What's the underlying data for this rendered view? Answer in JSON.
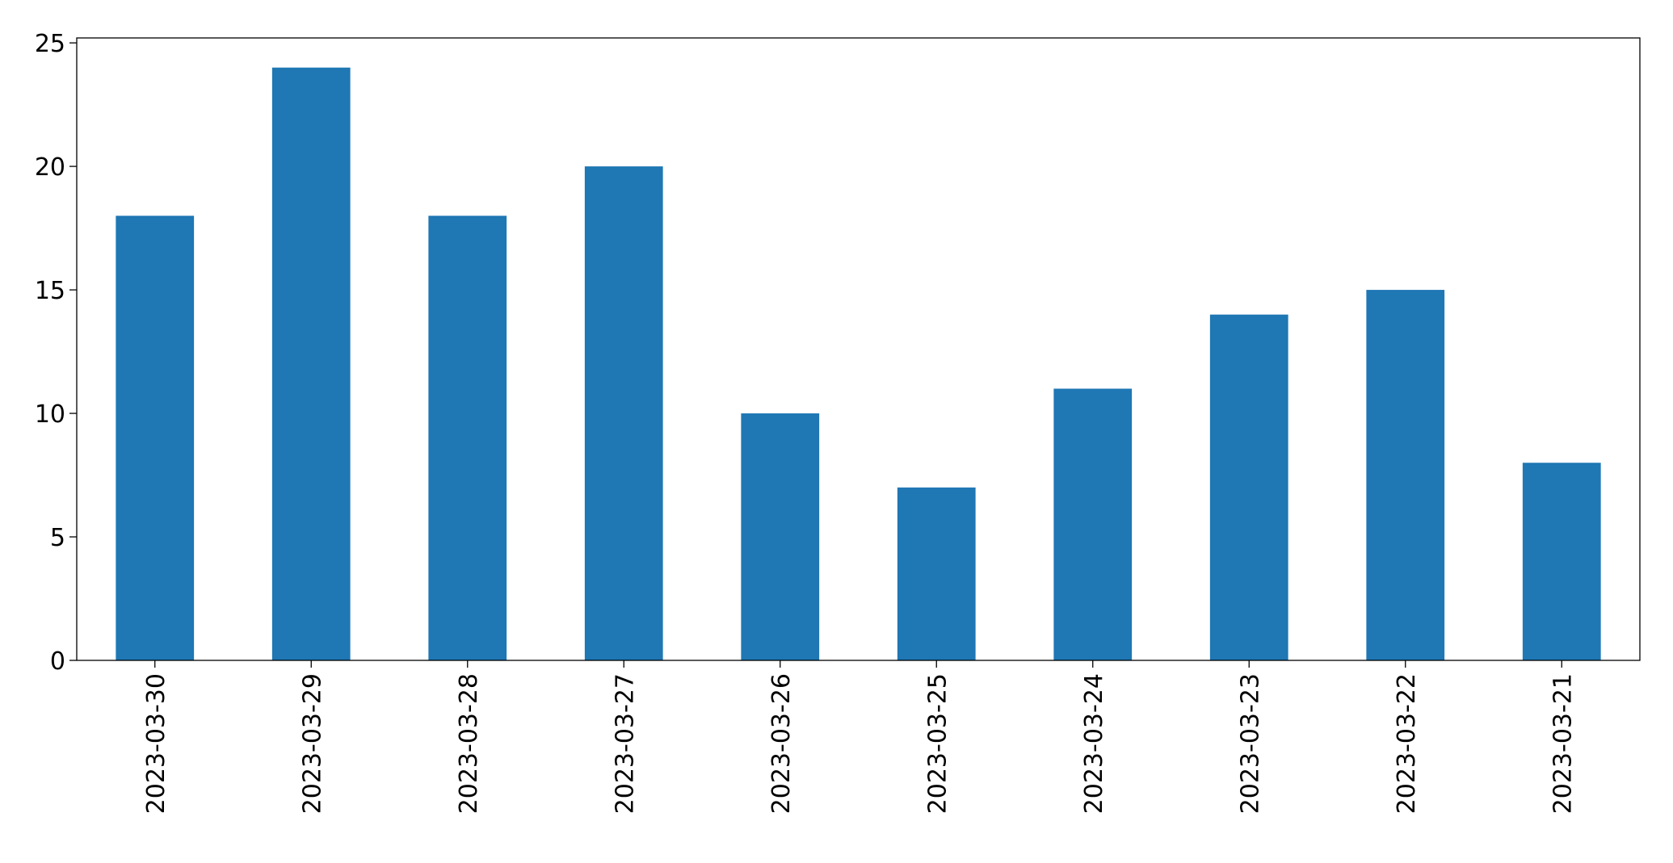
{
  "chart_data": {
    "type": "bar",
    "categories": [
      "2023-03-30",
      "2023-03-29",
      "2023-03-28",
      "2023-03-27",
      "2023-03-26",
      "2023-03-25",
      "2023-03-24",
      "2023-03-23",
      "2023-03-22",
      "2023-03-21"
    ],
    "values": [
      18,
      24,
      18,
      20,
      10,
      7,
      11,
      14,
      15,
      8
    ],
    "color": "#1f77b4",
    "ylim": [
      0,
      25.2
    ],
    "yticks": [
      0,
      5,
      10,
      15,
      20,
      25
    ],
    "grid": false
  }
}
